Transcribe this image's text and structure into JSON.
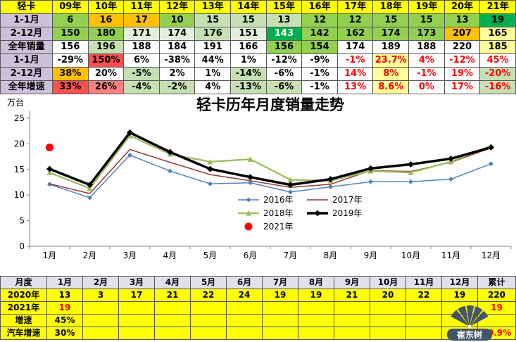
{
  "top_table": {
    "header": [
      "轻卡",
      "09年",
      "10年",
      "11年",
      "12年",
      "13年",
      "14年",
      "15年",
      "16年",
      "17年",
      "18年",
      "19年",
      "20年",
      "21年"
    ],
    "header_bg": "#FFFF00",
    "label_bg": "#CCC0DA",
    "rows": [
      {
        "label": "1-1月",
        "values": [
          "6",
          "16",
          "17",
          "10",
          "15",
          "15",
          "13",
          "12",
          "12",
          "15",
          "15",
          "13",
          "19"
        ],
        "bg": [
          "#92D050",
          "#FFC000",
          "#FFC000",
          "#92D050",
          "#C6E0B4",
          "#C6E0B4",
          "#C6E0B4",
          "#92D050",
          "#92D050",
          "#92D050",
          "#92D050",
          "#92D050",
          "#00B050"
        ],
        "fg": [
          "#000000",
          "#000000",
          "#000000",
          "#000000",
          "#000000",
          "#000000",
          "#000000",
          "#000000",
          "#000000",
          "#000000",
          "#000000",
          "#000000",
          "#000000"
        ]
      },
      {
        "label": "2-12月",
        "values": [
          "150",
          "180",
          "171",
          "174",
          "176",
          "151",
          "143",
          "142",
          "162",
          "174",
          "173",
          "207",
          "165"
        ],
        "bg": [
          "#92D050",
          "#92D050",
          "#E2EFDA",
          "#E2EFDA",
          "#C6E0B4",
          "#E2EFDA",
          "#00B050",
          "#92D050",
          "#92D050",
          "#92D050",
          "#92D050",
          "#FFC000",
          "#FFFF99"
        ],
        "fg": [
          "#000000",
          "#000000",
          "#000000",
          "#000000",
          "#000000",
          "#000000",
          "#FFFFFF",
          "#000000",
          "#000000",
          "#000000",
          "#000000",
          "#000000",
          "#000000"
        ]
      },
      {
        "label": "全年销量",
        "values": [
          "156",
          "196",
          "188",
          "184",
          "191",
          "166",
          "156",
          "154",
          "174",
          "189",
          "188",
          "220",
          "185"
        ],
        "bg": [
          "#FFFFFF",
          "#C6E0B4",
          "#FFFFFF",
          "#FFFFFF",
          "#FFFFFF",
          "#FFFFFF",
          "#92D050",
          "#92D050",
          "#FFFFFF",
          "#FFFFFF",
          "#FFFFFF",
          "#FFFFFF",
          "#FFFF99"
        ],
        "fg": [
          "#000000",
          "#000000",
          "#000000",
          "#000000",
          "#000000",
          "#000000",
          "#000000",
          "#000000",
          "#000000",
          "#000000",
          "#000000",
          "#000000",
          "#000000"
        ]
      },
      {
        "label": "1-1月",
        "values": [
          "-29%",
          "150%",
          "6%",
          "-38%",
          "44%",
          "1%",
          "-12%",
          "-9%",
          "-1%",
          "23.7%",
          "4%",
          "-12%",
          "45%"
        ],
        "bg": [
          "#FFFFFF",
          "#FF5050",
          "#FFFFFF",
          "#FFFFFF",
          "#FFFFFF",
          "#FFFFFF",
          "#FFFFFF",
          "#FFFFFF",
          "#FFFFFF",
          "#FFFF99",
          "#FFFFFF",
          "#FFFFFF",
          "#FFFFFF"
        ],
        "fg": [
          "#000000",
          "#000000",
          "#000000",
          "#000000",
          "#000000",
          "#000000",
          "#000000",
          "#000000",
          "#FF0000",
          "#FF0000",
          "#FF0000",
          "#FF0000",
          "#FF0000"
        ]
      },
      {
        "label": "2-12月",
        "values": [
          "38%",
          "20%",
          "-5%",
          "2%",
          "1%",
          "-14%",
          "-6%",
          "-1%",
          "14%",
          "8%",
          "-1%",
          "19%",
          "-20%"
        ],
        "bg": [
          "#FFC000",
          "#FFFFFF",
          "#C6E0B4",
          "#FFFFFF",
          "#FFFFFF",
          "#C6E0B4",
          "#FFFFFF",
          "#FFFFFF",
          "#FFFFFF",
          "#FFFF99",
          "#FFFFFF",
          "#FFFFFF",
          "#C6E0B4"
        ],
        "fg": [
          "#000000",
          "#000000",
          "#000000",
          "#000000",
          "#000000",
          "#000000",
          "#000000",
          "#000000",
          "#FF0000",
          "#FF0000",
          "#FF0000",
          "#FF0000",
          "#FF0000"
        ]
      },
      {
        "label": "全年增速",
        "values": [
          "33%",
          "26%",
          "-4%",
          "-2%",
          "4%",
          "-13%",
          "-6%",
          "-1%",
          "13%",
          "8.6%",
          "0%",
          "17%",
          "-16%"
        ],
        "bg": [
          "#FF5050",
          "#FF8080",
          "#C6E0B4",
          "#C6E0B4",
          "#FFFFFF",
          "#C6E0B4",
          "#C6E0B4",
          "#FFFFFF",
          "#FFFFFF",
          "#FFFF99",
          "#FFFFFF",
          "#FFFFFF",
          "#C6E0B4"
        ],
        "fg": [
          "#000000",
          "#000000",
          "#000000",
          "#000000",
          "#000000",
          "#000000",
          "#000000",
          "#000000",
          "#FF0000",
          "#FF0000",
          "#FF0000",
          "#FF0000",
          "#FF0000"
        ]
      }
    ]
  },
  "chart_data": {
    "type": "line",
    "title": "轻卡历年月度销量走势",
    "ylabel": "万台",
    "xlabel": "",
    "ylim": [
      0,
      25
    ],
    "y_ticks": [
      0,
      5,
      10,
      15,
      20,
      25
    ],
    "x": [
      "1月",
      "2月",
      "3月",
      "4月",
      "5月",
      "6月",
      "7月",
      "8月",
      "9月",
      "10月",
      "11月",
      "12月"
    ],
    "grid": false,
    "legend_position": "inside-bottom-center",
    "series": [
      {
        "name": "2016年",
        "color": "#4F81BD",
        "marker": "diamond",
        "marker_size": 3.5,
        "line_width": 1.5,
        "values": [
          12.1,
          9.5,
          17.8,
          14.7,
          12.2,
          12.4,
          10.6,
          11.6,
          12.6,
          12.6,
          13.1,
          16.1
        ]
      },
      {
        "name": "2017年",
        "color": "#953735",
        "marker": "none",
        "marker_size": 0,
        "line_width": 1.5,
        "values": [
          12.2,
          10.3,
          18.9,
          16.4,
          14.0,
          12.8,
          11.5,
          12.1,
          14.8,
          14.6,
          16.4,
          19.2
        ]
      },
      {
        "name": "2018年",
        "color": "#9BBB59",
        "marker": "triangle",
        "marker_size": 4,
        "line_width": 2.25,
        "values": [
          14.4,
          11.3,
          21.6,
          18.0,
          16.5,
          17.0,
          13.0,
          12.8,
          14.7,
          14.4,
          16.5,
          19.6
        ]
      },
      {
        "name": "2019年",
        "color": "#000000",
        "marker": "diamond",
        "marker_size": 4.5,
        "line_width": 3.5,
        "values": [
          15.1,
          12.0,
          22.2,
          18.4,
          15.1,
          13.5,
          12.0,
          13.1,
          15.2,
          16.0,
          17.1,
          19.3
        ]
      },
      {
        "name": "2021年",
        "color": "#FF0000",
        "marker": "dot",
        "marker_size": 4,
        "line_width": 0,
        "values": [
          19.3
        ]
      }
    ],
    "legend_rows": [
      [
        "2016年",
        "2017年"
      ],
      [
        "2018年",
        "2019年"
      ],
      [
        "2021年"
      ]
    ]
  },
  "bottom_table": {
    "header": [
      "月度",
      "1月",
      "2月",
      "3月",
      "4月",
      "5月",
      "6月",
      "7月",
      "8月",
      "9月",
      "10月",
      "11月",
      "12月",
      "累计"
    ],
    "header_bg": "#E4DFEC",
    "body_bg": "#FFFF00",
    "rows": [
      {
        "label": "2020年",
        "values": [
          "13",
          "3",
          "17",
          "21",
          "22",
          "24",
          "19",
          "19",
          "21",
          "20",
          "22",
          "19"
        ],
        "total": "220",
        "value_color": "#000000",
        "total_color": "#000000"
      },
      {
        "label": "2021年",
        "values": [
          "19",
          "",
          "",
          "",
          "",
          "",
          "",
          "",
          "",
          "",
          "",
          ""
        ],
        "total": "19",
        "value_color": "#FF0000",
        "total_color": "#FF0000"
      },
      {
        "label": "增速",
        "values": [
          "45%",
          "",
          "",
          "",
          "",
          "",
          "",
          "",
          "",
          "",
          "",
          ""
        ],
        "total": "",
        "value_color": "#000000",
        "total_color": "#000000"
      },
      {
        "label": "汽车增速",
        "values": [
          "30%",
          "",
          "",
          "",
          "",
          "",
          "",
          "",
          "",
          "",
          "",
          ""
        ],
        "total": "29.9%",
        "value_color": "#000000",
        "total_color": "#FF0000"
      }
    ]
  },
  "watermark": {
    "text": "崔东树",
    "color": "#44546A"
  }
}
